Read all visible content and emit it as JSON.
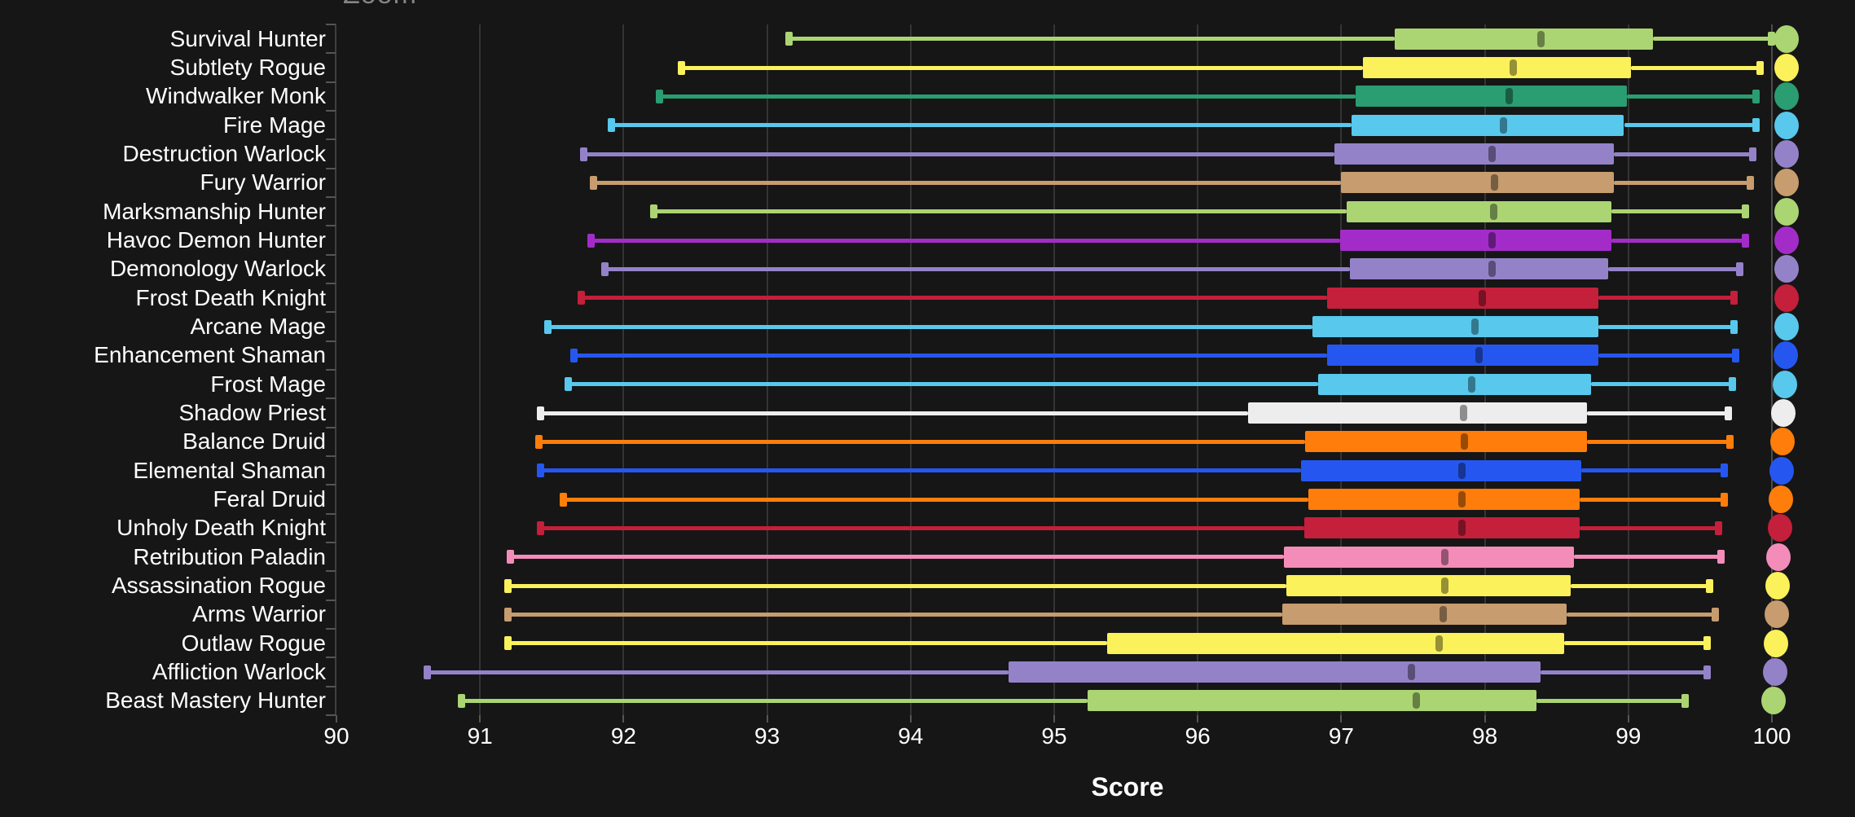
{
  "page": {
    "zoom_label": "Zoom"
  },
  "chart_data": {
    "type": "boxplot",
    "orientation": "horizontal",
    "title": "",
    "xlabel": "Score",
    "xlim": [
      90,
      100
    ],
    "xticks": [
      90,
      91,
      92,
      93,
      94,
      95,
      96,
      97,
      98,
      99,
      100
    ],
    "grid": true,
    "background": "#161616",
    "text_color": "#ffffff",
    "row_end_dot": "class-colored dot at right end of each row",
    "categories": [
      "Survival Hunter",
      "Subtlety Rogue",
      "Windwalker Monk",
      "Fire Mage",
      "Destruction Warlock",
      "Fury Warrior",
      "Marksmanship Hunter",
      "Havoc Demon Hunter",
      "Demonology Warlock",
      "Frost Death Knight",
      "Arcane Mage",
      "Enhancement Shaman",
      "Frost Mage",
      "Shadow Priest",
      "Balance Druid",
      "Elemental Shaman",
      "Feral Druid",
      "Unholy Death Knight",
      "Retribution Paladin",
      "Assassination Rogue",
      "Arms Warrior",
      "Outlaw Rogue",
      "Affliction Warlock",
      "Beast Mastery Hunter"
    ],
    "series": [
      {
        "label": "Survival Hunter",
        "color": "#abd473",
        "low": 93.15,
        "q1": 97.37,
        "median": 98.39,
        "q3": 99.17,
        "high": 100.0
      },
      {
        "label": "Subtlety Rogue",
        "color": "#faf15b",
        "low": 92.4,
        "q1": 97.15,
        "median": 98.2,
        "q3": 99.02,
        "high": 99.92
      },
      {
        "label": "Windwalker Monk",
        "color": "#2a9d72",
        "low": 92.25,
        "q1": 97.1,
        "median": 98.17,
        "q3": 98.99,
        "high": 99.89
      },
      {
        "label": "Fire Mage",
        "color": "#58c8ec",
        "low": 91.91,
        "q1": 97.07,
        "median": 98.13,
        "q3": 98.97,
        "high": 99.89
      },
      {
        "label": "Destruction Warlock",
        "color": "#9482c9",
        "low": 91.72,
        "q1": 96.95,
        "median": 98.05,
        "q3": 98.9,
        "high": 99.87
      },
      {
        "label": "Fury Warrior",
        "color": "#c79c6e",
        "low": 91.79,
        "q1": 97.0,
        "median": 98.07,
        "q3": 98.9,
        "high": 99.85
      },
      {
        "label": "Marksmanship Hunter",
        "color": "#abd473",
        "low": 92.21,
        "q1": 97.04,
        "median": 98.06,
        "q3": 98.88,
        "high": 99.82
      },
      {
        "label": "Havoc Demon Hunter",
        "color": "#a32cc9",
        "low": 91.77,
        "q1": 96.99,
        "median": 98.05,
        "q3": 98.88,
        "high": 99.82
      },
      {
        "label": "Demonology Warlock",
        "color": "#9482c9",
        "low": 91.87,
        "q1": 97.06,
        "median": 98.05,
        "q3": 98.86,
        "high": 99.78
      },
      {
        "label": "Frost Death Knight",
        "color": "#c41f3b",
        "low": 91.7,
        "q1": 96.9,
        "median": 97.98,
        "q3": 98.79,
        "high": 99.74
      },
      {
        "label": "Arcane Mage",
        "color": "#58c8ec",
        "low": 91.47,
        "q1": 96.8,
        "median": 97.93,
        "q3": 98.79,
        "high": 99.74
      },
      {
        "label": "Enhancement Shaman",
        "color": "#2557f0",
        "low": 91.65,
        "q1": 96.9,
        "median": 97.96,
        "q3": 98.79,
        "high": 99.75
      },
      {
        "label": "Frost Mage",
        "color": "#58c8ec",
        "low": 91.61,
        "q1": 96.84,
        "median": 97.91,
        "q3": 98.74,
        "high": 99.73
      },
      {
        "label": "Shadow Priest",
        "color": "#ededed",
        "low": 91.42,
        "q1": 96.35,
        "median": 97.85,
        "q3": 98.71,
        "high": 99.7
      },
      {
        "label": "Balance Druid",
        "color": "#ff7d0a",
        "low": 91.41,
        "q1": 96.75,
        "median": 97.86,
        "q3": 98.71,
        "high": 99.71
      },
      {
        "label": "Elemental Shaman",
        "color": "#2557f0",
        "low": 91.42,
        "q1": 96.72,
        "median": 97.84,
        "q3": 98.67,
        "high": 99.67
      },
      {
        "label": "Feral Druid",
        "color": "#ff7d0a",
        "low": 91.58,
        "q1": 96.77,
        "median": 97.84,
        "q3": 98.66,
        "high": 99.67
      },
      {
        "label": "Unholy Death Knight",
        "color": "#c41f3b",
        "low": 91.42,
        "q1": 96.74,
        "median": 97.84,
        "q3": 98.66,
        "high": 99.63
      },
      {
        "label": "Retribution Paladin",
        "color": "#f48cba",
        "low": 91.21,
        "q1": 96.6,
        "median": 97.72,
        "q3": 98.62,
        "high": 99.65
      },
      {
        "label": "Assassination Rogue",
        "color": "#faf15b",
        "low": 91.19,
        "q1": 96.62,
        "median": 97.72,
        "q3": 98.6,
        "high": 99.57
      },
      {
        "label": "Arms Warrior",
        "color": "#c79c6e",
        "low": 91.19,
        "q1": 96.59,
        "median": 97.71,
        "q3": 98.57,
        "high": 99.61
      },
      {
        "label": "Outlaw Rogue",
        "color": "#faf15b",
        "low": 91.19,
        "q1": 95.37,
        "median": 97.68,
        "q3": 98.55,
        "high": 99.55
      },
      {
        "label": "Affliction Warlock",
        "color": "#9482c9",
        "low": 90.63,
        "q1": 94.68,
        "median": 97.49,
        "q3": 98.39,
        "high": 99.55
      },
      {
        "label": "Beast Mastery Hunter",
        "color": "#abd473",
        "low": 90.87,
        "q1": 95.23,
        "median": 97.52,
        "q3": 98.36,
        "high": 99.4
      }
    ]
  }
}
